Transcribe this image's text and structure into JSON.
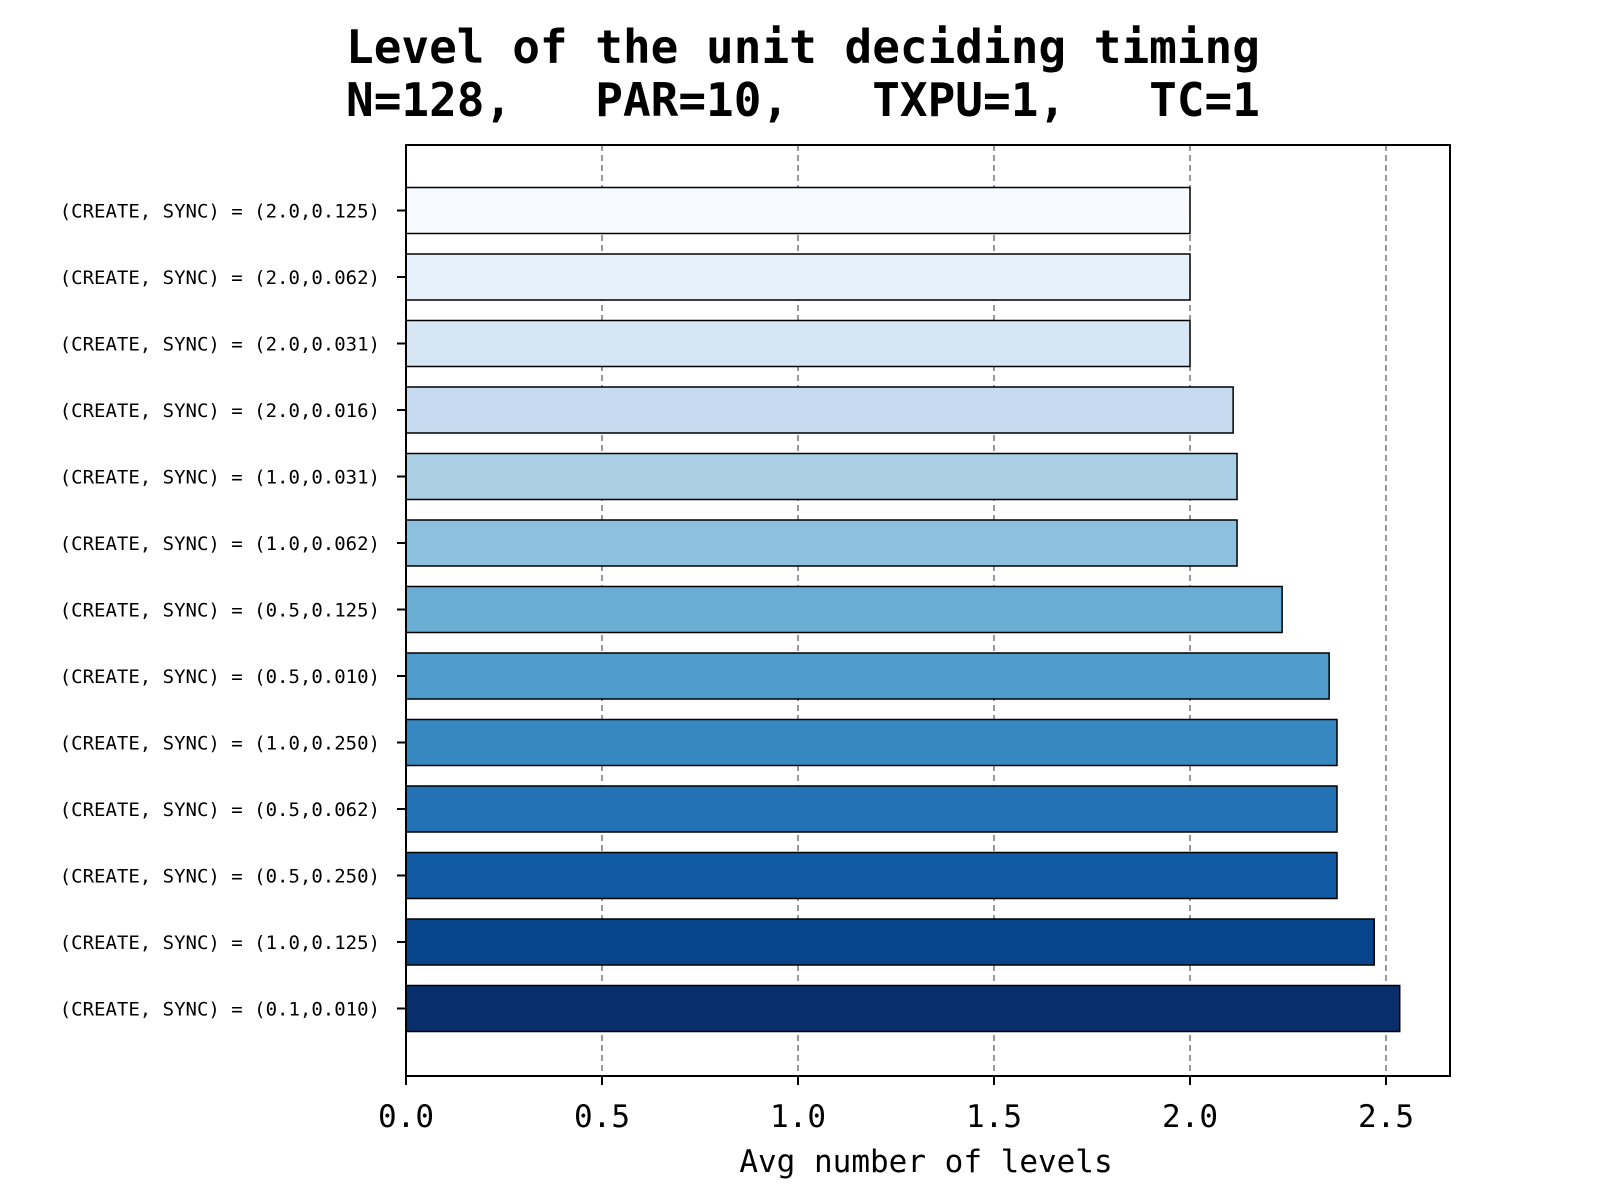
{
  "chart_data": {
    "type": "bar",
    "orientation": "horizontal",
    "title": [
      "Level of the unit deciding timing",
      "N=128,   PAR=10,   TXPU=1,   TC=1"
    ],
    "xlabel": "Avg number of levels",
    "ylabel": "",
    "xlim": [
      0,
      2.66
    ],
    "xticks": [
      0.0,
      0.5,
      1.0,
      1.5,
      2.0,
      2.5
    ],
    "xtick_labels": [
      "0.0",
      "0.5",
      "1.0",
      "1.5",
      "2.0",
      "2.5"
    ],
    "grid": "x-dashed",
    "categories": [
      "(CREATE, SYNC) = (2.0,0.125)",
      "(CREATE, SYNC) = (2.0,0.062)",
      "(CREATE, SYNC) = (2.0,0.031)",
      "(CREATE, SYNC) = (2.0,0.016)",
      "(CREATE, SYNC) = (1.0,0.031)",
      "(CREATE, SYNC) = (1.0,0.062)",
      "(CREATE, SYNC) = (0.5,0.125)",
      "(CREATE, SYNC) = (0.5,0.010)",
      "(CREATE, SYNC) = (1.0,0.250)",
      "(CREATE, SYNC) = (0.5,0.062)",
      "(CREATE, SYNC) = (0.5,0.250)",
      "(CREATE, SYNC) = (1.0,0.125)",
      "(CREATE, SYNC) = (0.1,0.010)"
    ],
    "values": [
      2.0,
      2.0,
      2.0,
      2.11,
      2.12,
      2.12,
      2.235,
      2.355,
      2.375,
      2.375,
      2.375,
      2.47,
      2.535
    ],
    "colors": [
      "#f7fbff",
      "#e7f1fa",
      "#d6e6f4",
      "#c6dbef",
      "#abd0e6",
      "#8dc0de",
      "#6aaed6",
      "#4f9bcb",
      "#3787c0",
      "#2272b5",
      "#105ba4",
      "#08468b",
      "#082e6b"
    ]
  }
}
